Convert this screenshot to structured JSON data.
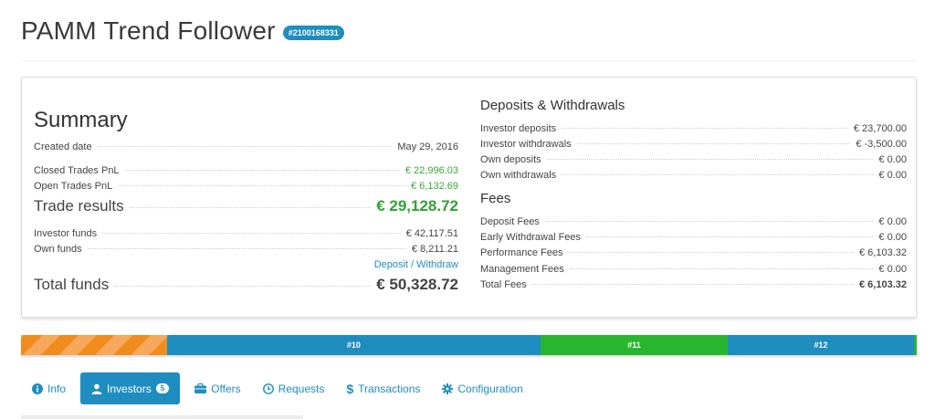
{
  "header": {
    "title": "PAMM Trend Follower",
    "badge": "#2100168331"
  },
  "summary": {
    "heading": "Summary",
    "created_label": "Created date",
    "created_value": "May 29, 2016",
    "closed_label": "Closed Trades PnL",
    "closed_value": "€ 22,996.03",
    "open_label": "Open Trades PnL",
    "open_value": "€ 6,132.69",
    "trade_label": "Trade results",
    "trade_value": "€ 29,128.72",
    "investor_funds_label": "Investor funds",
    "investor_funds_value": "€ 42,117.51",
    "own_funds_label": "Own funds",
    "own_funds_value": "€ 8,211.21",
    "deposit_link": "Deposit / Withdraw",
    "total_label": "Total funds",
    "total_value": "€ 50,328.72"
  },
  "deposits": {
    "heading": "Deposits & Withdrawals",
    "rows": [
      {
        "label": "Investor deposits",
        "value": "€ 23,700.00"
      },
      {
        "label": "Investor withdrawals",
        "value": "€ -3,500.00"
      },
      {
        "label": "Own deposits",
        "value": "€ 0.00"
      },
      {
        "label": "Own withdrawals",
        "value": "€ 0.00"
      }
    ]
  },
  "fees": {
    "heading": "Fees",
    "rows": [
      {
        "label": "Deposit Fees",
        "value": "€ 0.00"
      },
      {
        "label": "Early Withdrawal Fees",
        "value": "€ 0.00"
      },
      {
        "label": "Performance Fees",
        "value": "€ 6,103.32"
      },
      {
        "label": "Management Fees",
        "value": "€ 0.00"
      },
      {
        "label": "Total Fees",
        "value": "€ 6,103.32"
      }
    ]
  },
  "progress": {
    "segments": [
      {
        "label": "",
        "color": "#f08c1e",
        "fraction": 0.163
      },
      {
        "label": "#10",
        "color": "#1f8dc0",
        "fraction": 0.417
      },
      {
        "label": "#11",
        "color": "#2ab52e",
        "fraction": 0.209
      },
      {
        "label": "#12",
        "color": "#1f8dc0",
        "fraction": 0.208
      },
      {
        "label": "",
        "color": "#2ab52e",
        "fraction": 0.003
      }
    ]
  },
  "tabs": [
    {
      "label": "Info",
      "icon": "info-circle-icon"
    },
    {
      "label": "Investors",
      "icon": "user-icon",
      "count": "5",
      "active": true
    },
    {
      "label": "Offers",
      "icon": "briefcase-icon"
    },
    {
      "label": "Requests",
      "icon": "clock-icon"
    },
    {
      "label": "Transactions",
      "icon": "dollar-icon"
    },
    {
      "label": "Configuration",
      "icon": "gear-icon"
    }
  ],
  "colors": {
    "accent": "#1f8dc0",
    "positive": "#3aa83a",
    "orange": "#f08c1e"
  }
}
